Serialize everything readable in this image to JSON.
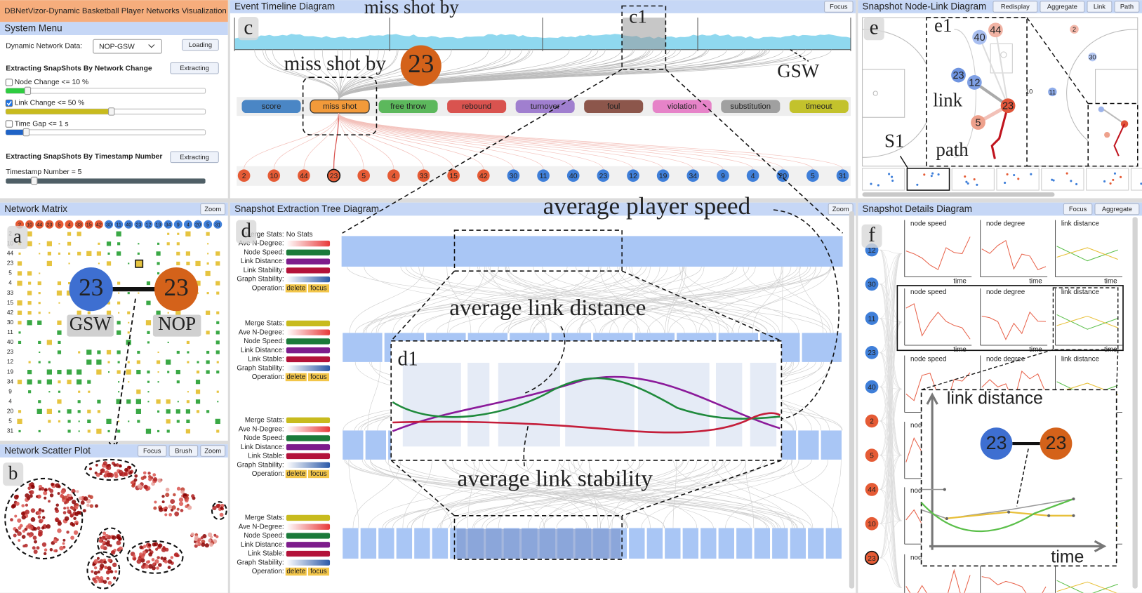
{
  "app_title": "DBNetVizor-Dynamic Basketball Player Networks Visualization",
  "players": [
    {
      "label": "2",
      "color": "#e55b35"
    },
    {
      "label": "10",
      "color": "#e55b35"
    },
    {
      "label": "44",
      "color": "#e55b35"
    },
    {
      "label": "23",
      "color": "#e55b35"
    },
    {
      "label": "5",
      "color": "#e55b35"
    },
    {
      "label": "4",
      "color": "#e55b35"
    },
    {
      "label": "33",
      "color": "#e55b35"
    },
    {
      "label": "15",
      "color": "#e55b35"
    },
    {
      "label": "42",
      "color": "#e55b35"
    },
    {
      "label": "30",
      "color": "#3f7fd9"
    },
    {
      "label": "11",
      "color": "#3f7fd9"
    },
    {
      "label": "40",
      "color": "#3f7fd9"
    },
    {
      "label": "23",
      "color": "#3f7fd9"
    },
    {
      "label": "12",
      "color": "#3f7fd9"
    },
    {
      "label": "19",
      "color": "#3f7fd9"
    },
    {
      "label": "34",
      "color": "#3f7fd9"
    },
    {
      "label": "9",
      "color": "#3f7fd9"
    },
    {
      "label": "4",
      "color": "#3f7fd9"
    },
    {
      "label": "20",
      "color": "#3f7fd9"
    },
    {
      "label": "5",
      "color": "#3f7fd9"
    },
    {
      "label": "31",
      "color": "#3f7fd9"
    }
  ],
  "system_menu": {
    "title": "System Menu",
    "data_label": "Dynamic Network Data:",
    "data_value": "NOP-GSW",
    "load_button": "Loading",
    "network_change": {
      "title": "Extracting SnapShots By Network Change",
      "button": "Extracting",
      "options": [
        {
          "label": "Node Change <= 10 %",
          "checked": false,
          "color": "#2ecc40"
        },
        {
          "label": "Link Change <= 50 %",
          "checked": true,
          "color": "#c8bb1e"
        },
        {
          "label": "Time Gap <= 1 s",
          "checked": false,
          "color": "#1f63c6"
        }
      ]
    },
    "timestamp": {
      "title": "Extracting SnapShots By Timestamp Number",
      "button": "Extracting",
      "label": "Timestamp Number = 5",
      "color": "#4f5f66"
    }
  },
  "network_matrix": {
    "title": "Network Matrix",
    "button": "Zoom",
    "tag": "a",
    "cell_colors": [
      "#e6c440",
      "#3aa845"
    ],
    "link": {
      "left_node": "23",
      "left_color": "#3e6fd1",
      "left_team": "GSW",
      "right_node": "23",
      "right_color": "#d4621a",
      "right_team": "NOP"
    }
  },
  "scatter_plot": {
    "title": "Network Scatter Plot",
    "buttons": [
      "Focus",
      "Brush",
      "Zoom"
    ],
    "tag": "b"
  },
  "event_timeline": {
    "title": "Event Timeline Diagram",
    "button": "Focus",
    "tag": "c",
    "zoom_tag": "c1",
    "top_annotation": "miss shot by",
    "mid_annotation": "miss shot by",
    "annotation_node": "23",
    "annotation_color": "#d4621a",
    "team_label": "GSW",
    "events": [
      {
        "label": "score",
        "color": "#4a86c5"
      },
      {
        "label": "miss shot",
        "color": "#f29a3a"
      },
      {
        "label": "free throw",
        "color": "#5cb85c"
      },
      {
        "label": "rebound",
        "color": "#d9534f"
      },
      {
        "label": "turnover",
        "color": "#a07fcf"
      },
      {
        "label": "foul",
        "color": "#8c564b"
      },
      {
        "label": "violation",
        "color": "#e683c8"
      },
      {
        "label": "substitution",
        "color": "#a0a0a0"
      },
      {
        "label": "timeout",
        "color": "#c3c22c"
      }
    ]
  },
  "node_link": {
    "title": "Snapshot Node-Link Diagram",
    "buttons": [
      "Redisplay",
      "Aggregate",
      "Link",
      "Path"
    ],
    "tag": "e",
    "zoom_tag": "e1",
    "link_label": "link",
    "path_label": "path",
    "snapshot_label": "S1",
    "nodes": [
      {
        "label": "40",
        "color": "#a9bff0"
      },
      {
        "label": "44",
        "color": "#f1b3a4"
      },
      {
        "label": "23",
        "color": "#6f94e0"
      },
      {
        "label": "12",
        "color": "#7fa0e4"
      },
      {
        "label": "5",
        "color": "#eea18c"
      },
      {
        "label": "23",
        "color": "#e0553a"
      }
    ],
    "court_nodes": [
      {
        "label": "2",
        "color": "#f3b8aa"
      },
      {
        "label": "30",
        "color": "#b5c8f2"
      },
      {
        "label": "11",
        "color": "#8eacea"
      },
      {
        "label": "10",
        "color": "#f3b8aa"
      }
    ]
  },
  "extraction_tree": {
    "title": "Snapshot Extraction Tree Diagram",
    "button": "Zoom",
    "tag": "d",
    "zoom_tag": "d1",
    "speed_annotation": "average player speed",
    "distance_annotation": "average link distance",
    "stability_annotation": "average link stability",
    "curve_colors": [
      "#8b1a9a",
      "#1f8a3c",
      "#c41e3a"
    ],
    "legends": [
      {
        "rows": [
          {
            "label": "Merge Stats:",
            "value": "No Stats"
          },
          {
            "label": "Ave N-Degree:",
            "colors": [
              "#ffffff",
              "#e83a3a"
            ]
          },
          {
            "label": "Node Speed:",
            "colors": [
              "#1a7a3a"
            ]
          },
          {
            "label": "Link Distance:",
            "colors": [
              "#7d1c8c"
            ]
          },
          {
            "label": "Link Stability:",
            "colors": [
              "#b3123a"
            ]
          },
          {
            "label": "Graph Stability:",
            "colors": [
              "#ffffff",
              "#2c5aa8"
            ]
          }
        ],
        "operation": "Operation:",
        "ops": [
          "delete",
          "focus"
        ]
      },
      {
        "rows": [
          {
            "label": "Merge Stats:",
            "colors": [
              "#c8bb1e"
            ]
          },
          {
            "label": "Ave N-Degree:",
            "colors": [
              "#ffffff",
              "#e83a3a"
            ]
          },
          {
            "label": "Node Speed:",
            "colors": [
              "#1a7a3a"
            ]
          },
          {
            "label": "Link Distance:",
            "colors": [
              "#7d1c8c"
            ]
          },
          {
            "label": "Link Stable:",
            "colors": [
              "#b3123a"
            ]
          },
          {
            "label": "Graph Stability:",
            "colors": [
              "#ffffff",
              "#2c5aa8"
            ]
          }
        ],
        "operation": "Operation:",
        "ops": [
          "delete",
          "focus"
        ]
      },
      {
        "rows": [
          {
            "label": "Merge Stats:",
            "colors": [
              "#c8bb1e"
            ]
          },
          {
            "label": "Ave N-Degree:",
            "colors": [
              "#ffffff",
              "#e83a3a"
            ]
          },
          {
            "label": "Node Speed:",
            "colors": [
              "#1a7a3a"
            ]
          },
          {
            "label": "Link Distance:",
            "colors": [
              "#7d1c8c"
            ]
          },
          {
            "label": "Link Stable:",
            "colors": [
              "#b3123a"
            ]
          },
          {
            "label": "Graph Stability:",
            "colors": [
              "#ffffff",
              "#2c5aa8"
            ]
          }
        ],
        "operation": "Operation:",
        "ops": [
          "delete",
          "focus"
        ]
      },
      {
        "rows": [
          {
            "label": "Merge Stats:",
            "colors": [
              "#c8bb1e"
            ]
          },
          {
            "label": "Ave N-Degree:",
            "colors": [
              "#ffffff",
              "#e83a3a"
            ]
          },
          {
            "label": "Node Speed:",
            "colors": [
              "#1a7a3a"
            ]
          },
          {
            "label": "Link Distance:",
            "colors": [
              "#7d1c8c"
            ]
          },
          {
            "label": "Link Stable:",
            "colors": [
              "#b3123a"
            ]
          },
          {
            "label": "Graph Stability:",
            "colors": [
              "#ffffff",
              "#2c5aa8"
            ]
          }
        ],
        "operation": "Operation:",
        "ops": [
          "delete",
          "focus"
        ]
      }
    ]
  },
  "snapshot_details": {
    "title": "Snapshot Details Diagram",
    "buttons": [
      "Focus",
      "Aggregate"
    ],
    "tag": "f",
    "metrics": [
      "node speed",
      "node degree",
      "link distance"
    ],
    "axis_label": "time",
    "players": [
      {
        "label": "12",
        "color": "#3f7fd9"
      },
      {
        "label": "30",
        "color": "#3f7fd9"
      },
      {
        "label": "11",
        "color": "#3f7fd9"
      },
      {
        "label": "23",
        "color": "#3f7fd9"
      },
      {
        "label": "40",
        "color": "#3f7fd9"
      },
      {
        "label": "2",
        "color": "#e55b35"
      },
      {
        "label": "5",
        "color": "#e55b35"
      },
      {
        "label": "44",
        "color": "#e55b35"
      },
      {
        "label": "10",
        "color": "#e55b35"
      },
      {
        "label": "23",
        "color": "#e55b35"
      }
    ],
    "inset": {
      "title": "link distance",
      "left_node": "23",
      "left_color": "#3e6fd1",
      "right_node": "23",
      "right_color": "#d4621a",
      "axis_label": "time"
    }
  }
}
